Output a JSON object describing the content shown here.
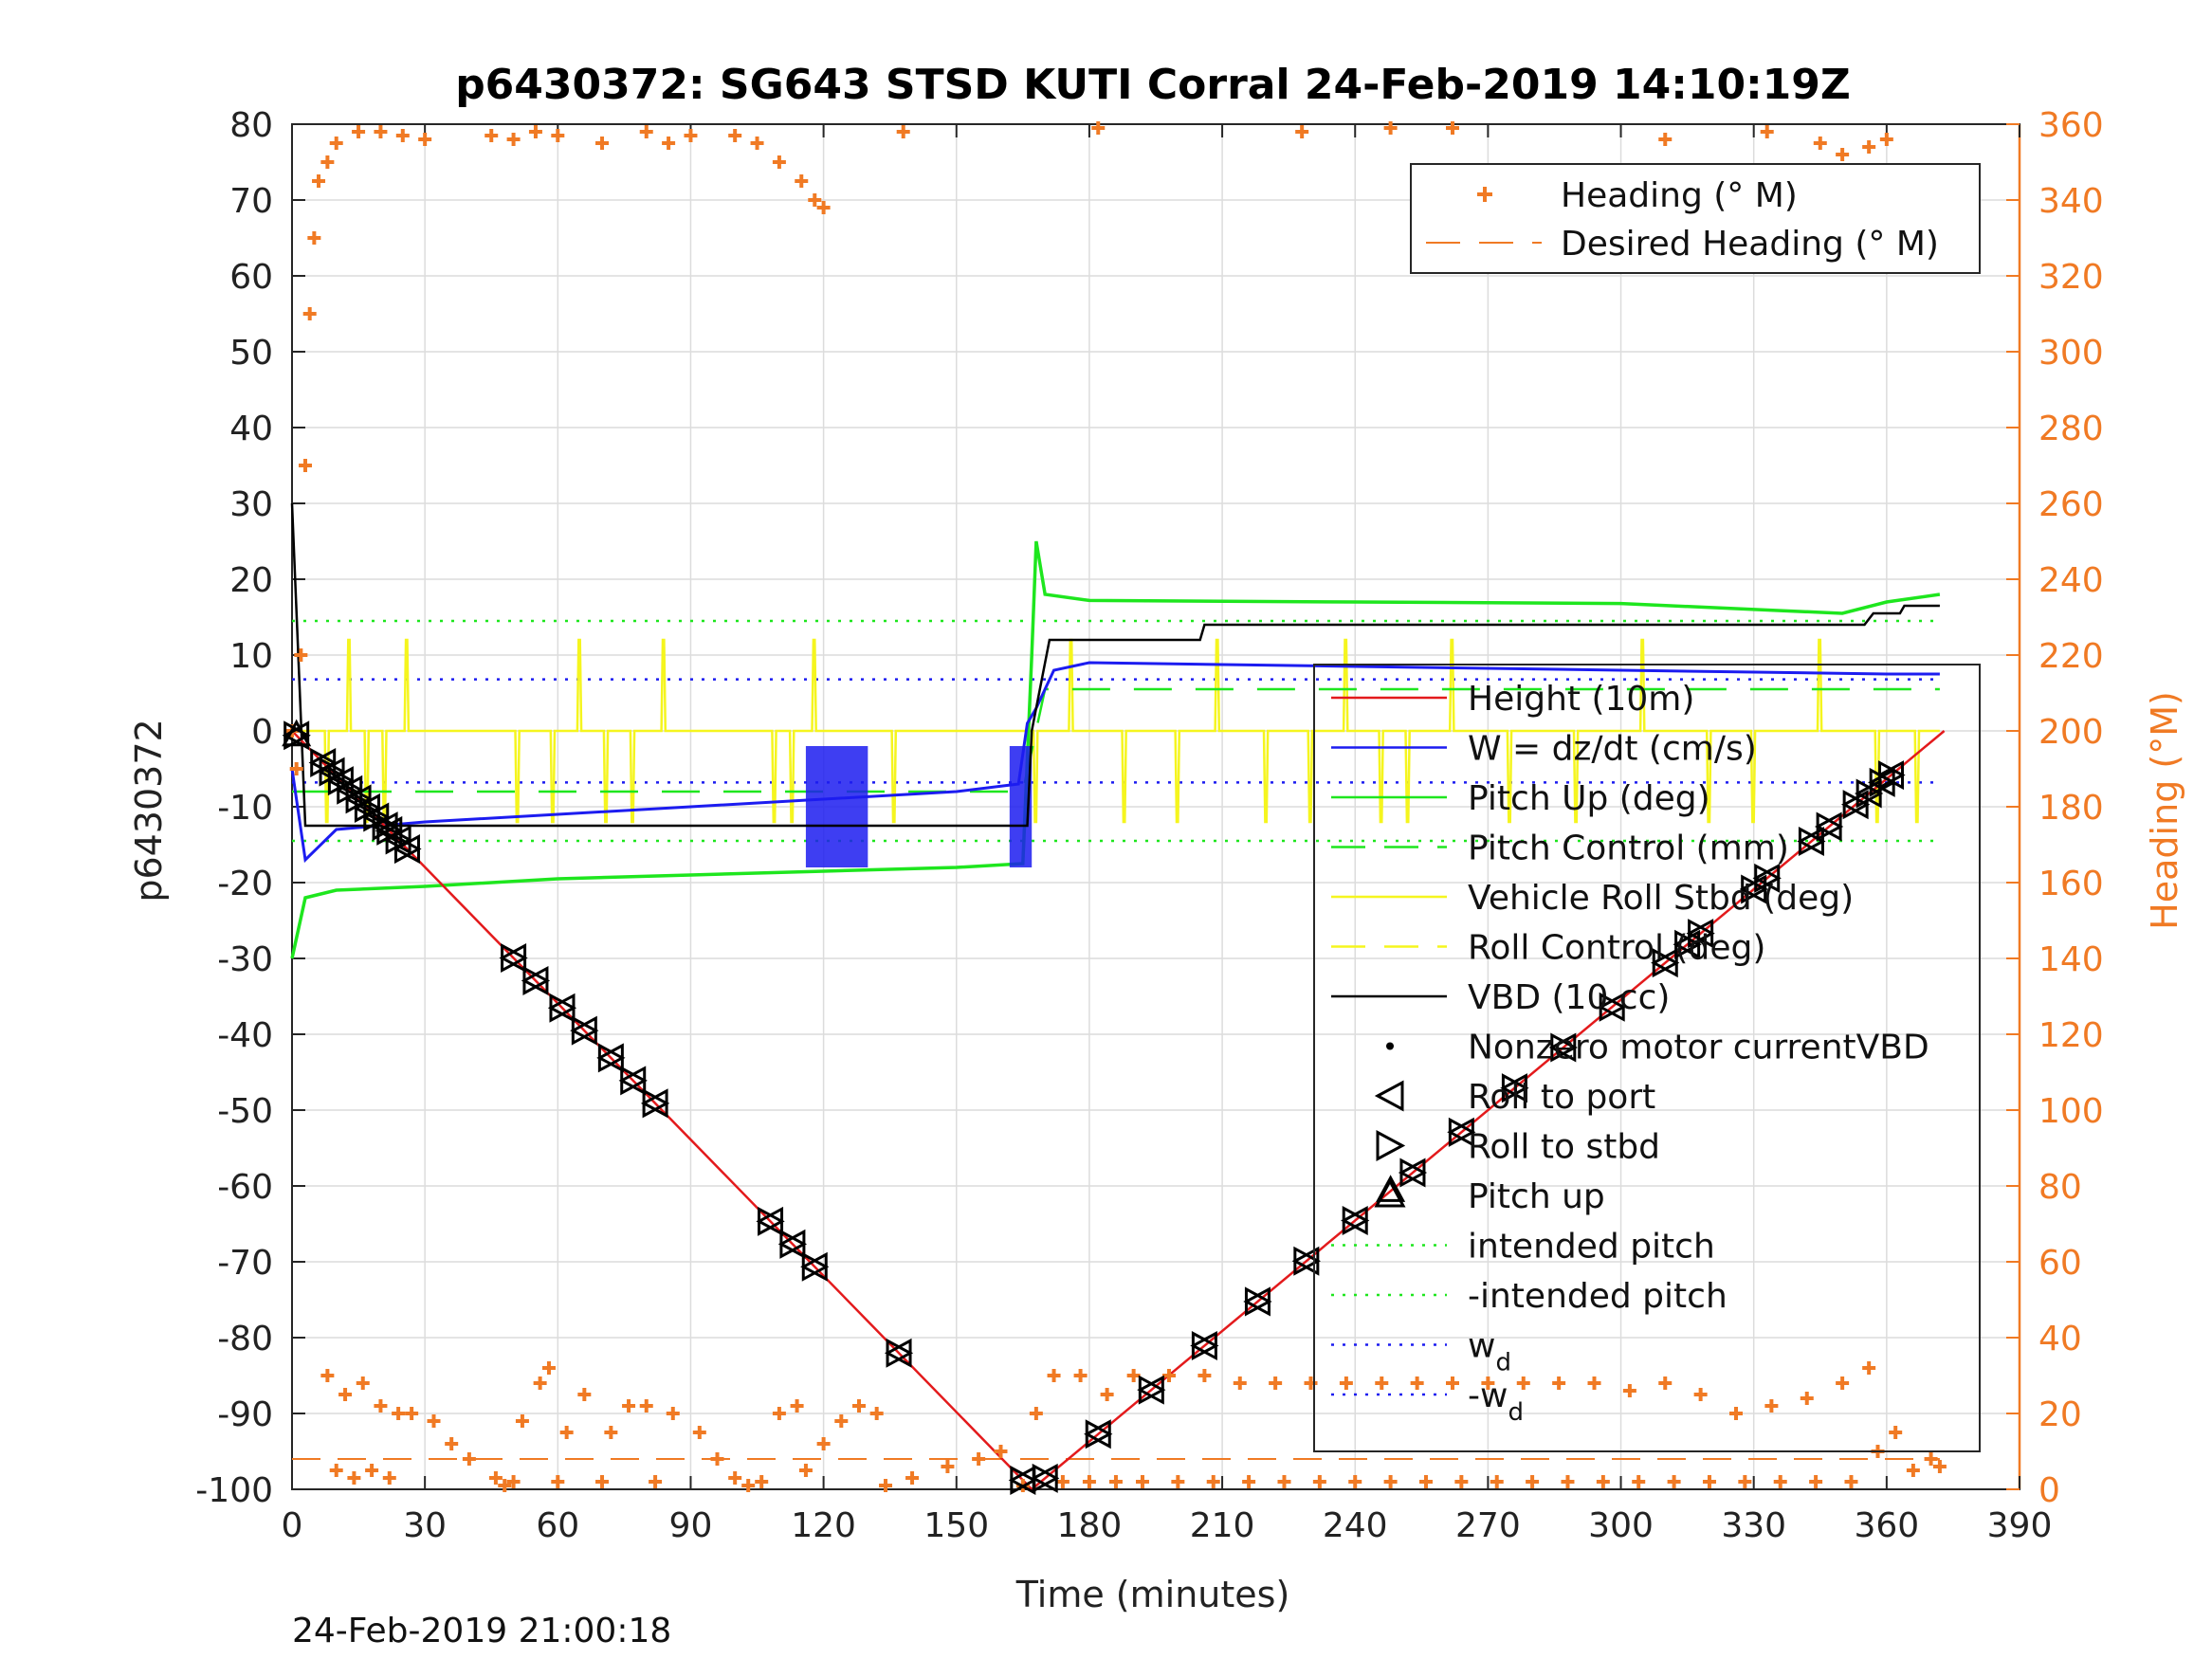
{
  "title": "p6430372: SG643 STSD KUTI Corral 24-Feb-2019 14:10:19Z",
  "footer": "24-Feb-2019 21:00:18",
  "colors": {
    "heading": "#f07a24",
    "height": "#e31a1c",
    "w": "#1c1cf0",
    "pitch": "#1ee61e",
    "roll": "#f5f51e",
    "vbd": "#000000"
  },
  "chart_data": {
    "type": "line",
    "title": "p6430372: SG643 STSD KUTI Corral 24-Feb-2019 14:10:19Z",
    "xlabel": "Time (minutes)",
    "ylabel": "p6430372",
    "ylabel_right": "Heading (°M)",
    "xlim": [
      0,
      390
    ],
    "ylim": [
      -100,
      80
    ],
    "ylim_right": [
      0,
      360
    ],
    "xticks": [
      "0",
      "30",
      "60",
      "90",
      "120",
      "150",
      "180",
      "210",
      "240",
      "270",
      "300",
      "330",
      "360",
      "390"
    ],
    "yticks": [
      "80",
      "70",
      "60",
      "50",
      "40",
      "30",
      "20",
      "10",
      "0",
      "-10",
      "-20",
      "-30",
      "-40",
      "-50",
      "-60",
      "-70",
      "-80",
      "-90",
      "-100"
    ],
    "yticks_right": [
      "360",
      "340",
      "320",
      "300",
      "280",
      "260",
      "240",
      "220",
      "200",
      "180",
      "160",
      "140",
      "120",
      "100",
      "80",
      "60",
      "40",
      "20",
      "0"
    ],
    "grid": true,
    "legend_heading": {
      "placement": "top-right",
      "entries": [
        "Heading (° M)",
        "Desired Heading (° M)"
      ]
    },
    "legend_main": {
      "placement": "right",
      "entries": [
        "Height (10m)",
        "W = dz/dt (cm/s)",
        "Pitch Up (deg)",
        "Pitch Control (mm)",
        "Vehicle Roll Stbd (deg)",
        "Roll Control (deg)",
        "VBD (10 cc)",
        "Nonzero motor currentVBD",
        "Roll to port",
        "Roll to stbd",
        "Pitch up",
        "intended pitch",
        "-intended pitch",
        "w",
        "-w"
      ],
      "subscript": "d"
    },
    "series": [
      {
        "name": "Height (10m)",
        "x": [
          0,
          167,
          373
        ],
        "y": [
          0,
          -100,
          0
        ]
      },
      {
        "name": "W = dz/dt (cm/s)",
        "x": [
          0,
          3,
          10,
          30,
          60,
          90,
          120,
          150,
          164,
          166,
          168,
          172,
          180,
          240,
          300,
          360,
          372
        ],
        "y": [
          -5,
          -17,
          -13,
          -12,
          -11,
          -10,
          -9,
          -8,
          -7,
          1,
          3,
          8,
          9,
          8.5,
          8,
          7.5,
          7.5
        ]
      },
      {
        "name": "Pitch Up (deg)",
        "x": [
          0,
          3,
          10,
          30,
          60,
          90,
          120,
          150,
          165,
          167,
          168,
          170,
          180,
          240,
          300,
          350,
          360,
          372
        ],
        "y": [
          -30,
          -22,
          -21,
          -20.5,
          -19.5,
          -19,
          -18.5,
          -18,
          -17.5,
          10,
          25,
          18,
          17.2,
          17,
          16.8,
          15.5,
          17,
          18
        ]
      },
      {
        "name": "Pitch Control (mm)",
        "x": [
          0,
          165,
          170,
          372
        ],
        "y": [
          -8,
          -8,
          5.5,
          5.5
        ]
      },
      {
        "name": "VBD (10 cc)",
        "x": [
          0,
          3,
          166,
          167,
          171,
          205,
          206,
          355,
          357,
          363,
          364,
          372
        ],
        "y": [
          30,
          -12.5,
          -12.5,
          0,
          12,
          12,
          14,
          14,
          15.5,
          15.5,
          16.5,
          16.5
        ]
      },
      {
        "name": "Vehicle Roll Stbd (deg)",
        "x": [
          0,
          372
        ],
        "y": [
          0,
          0
        ]
      },
      {
        "name": "Desired Heading (° M)",
        "x": [
          0,
          372
        ],
        "y_right": [
          8,
          8
        ]
      },
      {
        "name": "intended pitch",
        "x": [
          0,
          372
        ],
        "y": [
          14.5,
          14.5
        ]
      },
      {
        "name": "-intended pitch",
        "x": [
          0,
          372
        ],
        "y": [
          -14.5,
          -14.5
        ]
      },
      {
        "name": "w",
        "x": [
          0,
          372
        ],
        "y": [
          6.8,
          6.8
        ]
      },
      {
        "name": "-w",
        "x": [
          0,
          372
        ],
        "y": [
          -6.8,
          -6.8
        ]
      }
    ],
    "roll_spikes_x": [
      8,
      13,
      17,
      21,
      26,
      51,
      59,
      65,
      71,
      77,
      84,
      109,
      113,
      118,
      136,
      168,
      176,
      188,
      200,
      209,
      220,
      230,
      238,
      246,
      252,
      262,
      275,
      290,
      305,
      320,
      330,
      345,
      358,
      367
    ],
    "markers": {
      "roll_to_port_x": [
        1,
        7,
        9,
        11,
        13,
        15,
        17,
        19,
        21,
        22,
        24,
        26,
        50,
        55,
        61,
        66,
        72,
        77,
        82,
        108,
        113,
        118,
        137,
        165,
        170,
        182,
        194,
        206,
        218,
        229,
        240,
        253,
        264,
        276,
        287,
        298,
        310,
        315,
        318,
        330,
        333,
        343,
        347,
        353,
        356,
        359,
        361
      ],
      "pitch_up_x": [
        1,
        248
      ]
    },
    "heading_points": [
      [
        0,
        200
      ],
      [
        1,
        190
      ],
      [
        2,
        220
      ],
      [
        3,
        270
      ],
      [
        4,
        310
      ],
      [
        5,
        330
      ],
      [
        6,
        345
      ],
      [
        8,
        350
      ],
      [
        10,
        355
      ],
      [
        15,
        358
      ],
      [
        20,
        358
      ],
      [
        25,
        357
      ],
      [
        30,
        356
      ],
      [
        45,
        357
      ],
      [
        50,
        356
      ],
      [
        55,
        358
      ],
      [
        60,
        357
      ],
      [
        70,
        355
      ],
      [
        80,
        358
      ],
      [
        85,
        355
      ],
      [
        90,
        357
      ],
      [
        100,
        357
      ],
      [
        105,
        355
      ],
      [
        110,
        350
      ],
      [
        115,
        345
      ],
      [
        118,
        340
      ],
      [
        120,
        338
      ],
      [
        138,
        358
      ],
      [
        182,
        359
      ],
      [
        228,
        358
      ],
      [
        248,
        359
      ],
      [
        262,
        359
      ],
      [
        310,
        356
      ],
      [
        333,
        358
      ],
      [
        345,
        355
      ],
      [
        350,
        352
      ],
      [
        356,
        354
      ],
      [
        360,
        356
      ],
      [
        8,
        30
      ],
      [
        10,
        5
      ],
      [
        12,
        25
      ],
      [
        14,
        3
      ],
      [
        16,
        28
      ],
      [
        18,
        5
      ],
      [
        20,
        22
      ],
      [
        22,
        3
      ],
      [
        24,
        20
      ],
      [
        27,
        20
      ],
      [
        32,
        18
      ],
      [
        36,
        12
      ],
      [
        40,
        8
      ],
      [
        46,
        3
      ],
      [
        48,
        1
      ],
      [
        50,
        2
      ],
      [
        52,
        18
      ],
      [
        56,
        28
      ],
      [
        58,
        32
      ],
      [
        60,
        2
      ],
      [
        62,
        15
      ],
      [
        66,
        25
      ],
      [
        70,
        2
      ],
      [
        72,
        15
      ],
      [
        76,
        22
      ],
      [
        80,
        22
      ],
      [
        82,
        2
      ],
      [
        86,
        20
      ],
      [
        92,
        15
      ],
      [
        96,
        8
      ],
      [
        100,
        3
      ],
      [
        103,
        1
      ],
      [
        106,
        2
      ],
      [
        110,
        20
      ],
      [
        114,
        22
      ],
      [
        116,
        5
      ],
      [
        120,
        12
      ],
      [
        124,
        18
      ],
      [
        128,
        22
      ],
      [
        132,
        20
      ],
      [
        134,
        1
      ],
      [
        140,
        3
      ],
      [
        148,
        6
      ],
      [
        155,
        8
      ],
      [
        160,
        10
      ],
      [
        165,
        1
      ],
      [
        168,
        20
      ],
      [
        172,
        30
      ],
      [
        174,
        2
      ],
      [
        178,
        30
      ],
      [
        180,
        2
      ],
      [
        184,
        25
      ],
      [
        186,
        2
      ],
      [
        190,
        30
      ],
      [
        192,
        2
      ],
      [
        198,
        30
      ],
      [
        200,
        2
      ],
      [
        206,
        30
      ],
      [
        208,
        2
      ],
      [
        214,
        28
      ],
      [
        216,
        2
      ],
      [
        222,
        28
      ],
      [
        224,
        2
      ],
      [
        230,
        28
      ],
      [
        232,
        2
      ],
      [
        238,
        28
      ],
      [
        240,
        2
      ],
      [
        246,
        28
      ],
      [
        248,
        2
      ],
      [
        254,
        28
      ],
      [
        256,
        2
      ],
      [
        262,
        28
      ],
      [
        264,
        2
      ],
      [
        270,
        28
      ],
      [
        272,
        2
      ],
      [
        278,
        28
      ],
      [
        280,
        2
      ],
      [
        286,
        28
      ],
      [
        288,
        2
      ],
      [
        294,
        28
      ],
      [
        296,
        2
      ],
      [
        302,
        26
      ],
      [
        304,
        2
      ],
      [
        310,
        28
      ],
      [
        312,
        2
      ],
      [
        318,
        25
      ],
      [
        320,
        2
      ],
      [
        326,
        20
      ],
      [
        328,
        2
      ],
      [
        334,
        22
      ],
      [
        336,
        2
      ],
      [
        342,
        24
      ],
      [
        344,
        2
      ],
      [
        350,
        28
      ],
      [
        352,
        2
      ],
      [
        356,
        32
      ],
      [
        358,
        10
      ],
      [
        362,
        15
      ],
      [
        366,
        5
      ],
      [
        370,
        8
      ],
      [
        372,
        6
      ]
    ]
  }
}
